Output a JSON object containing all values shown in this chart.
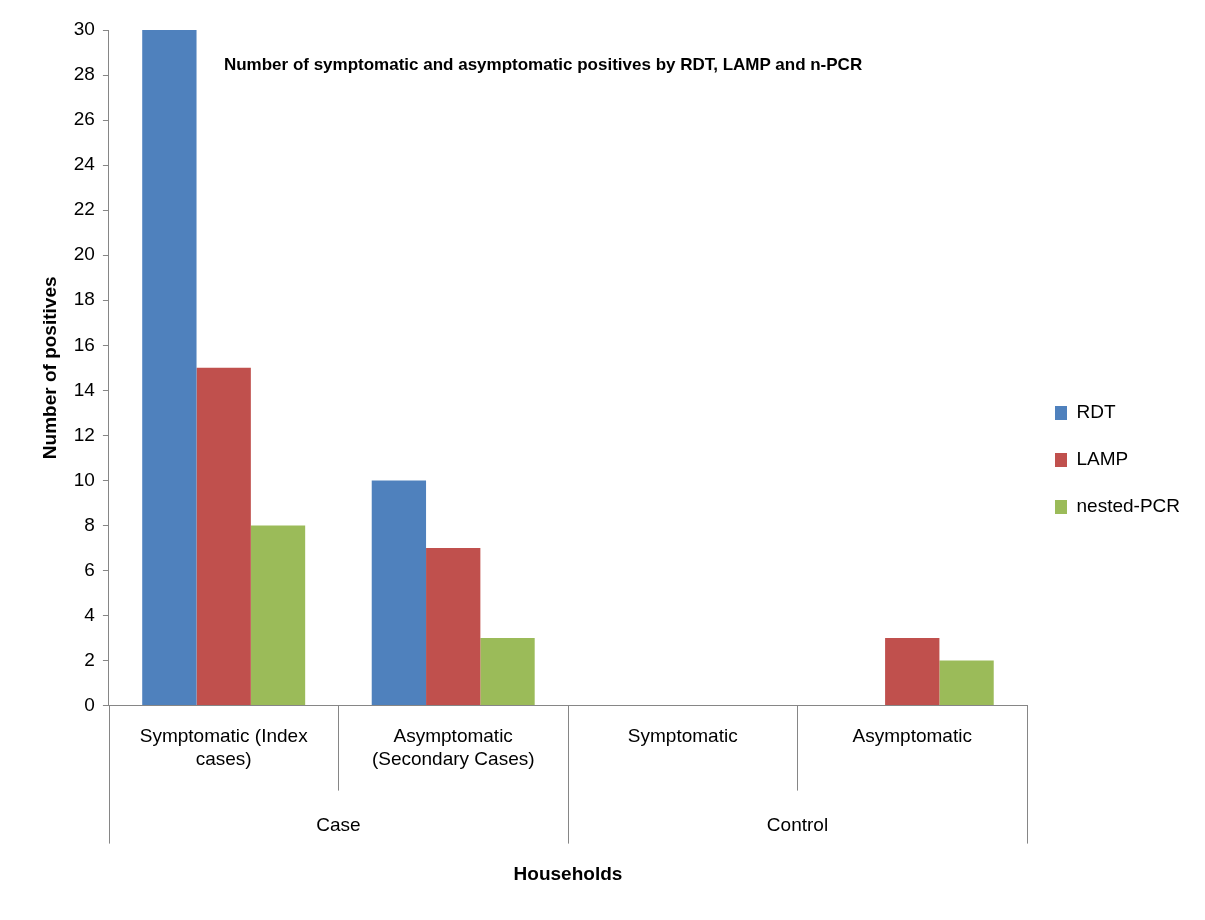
{
  "chart_data": {
    "type": "bar",
    "title": "Number of symptomatic and asymptomatic positives by RDT, LAMP and n-PCR",
    "xlabel": "Households",
    "ylabel": "Number of positives",
    "categories": [
      "Symptomatic (Index cases)",
      "Asymptomatic (Secondary Cases)",
      "Symptomatic",
      "Asymptomatic"
    ],
    "annotations": [
      "Case",
      "Control"
    ],
    "series": [
      {
        "name": "RDT",
        "color": "#4f81bd",
        "values": [
          30,
          10,
          0,
          0
        ]
      },
      {
        "name": "LAMP",
        "color": "#c0504d",
        "values": [
          15,
          7,
          0,
          3
        ]
      },
      {
        "name": "nested-PCR",
        "color": "#9bbb59",
        "values": [
          8,
          3,
          0,
          2
        ]
      }
    ],
    "ylim": [
      0,
      30
    ],
    "yticks": [
      0,
      2,
      4,
      6,
      8,
      10,
      12,
      14,
      16,
      18,
      20,
      22,
      24,
      26,
      28,
      30
    ],
    "grid": false,
    "legend": "right"
  }
}
